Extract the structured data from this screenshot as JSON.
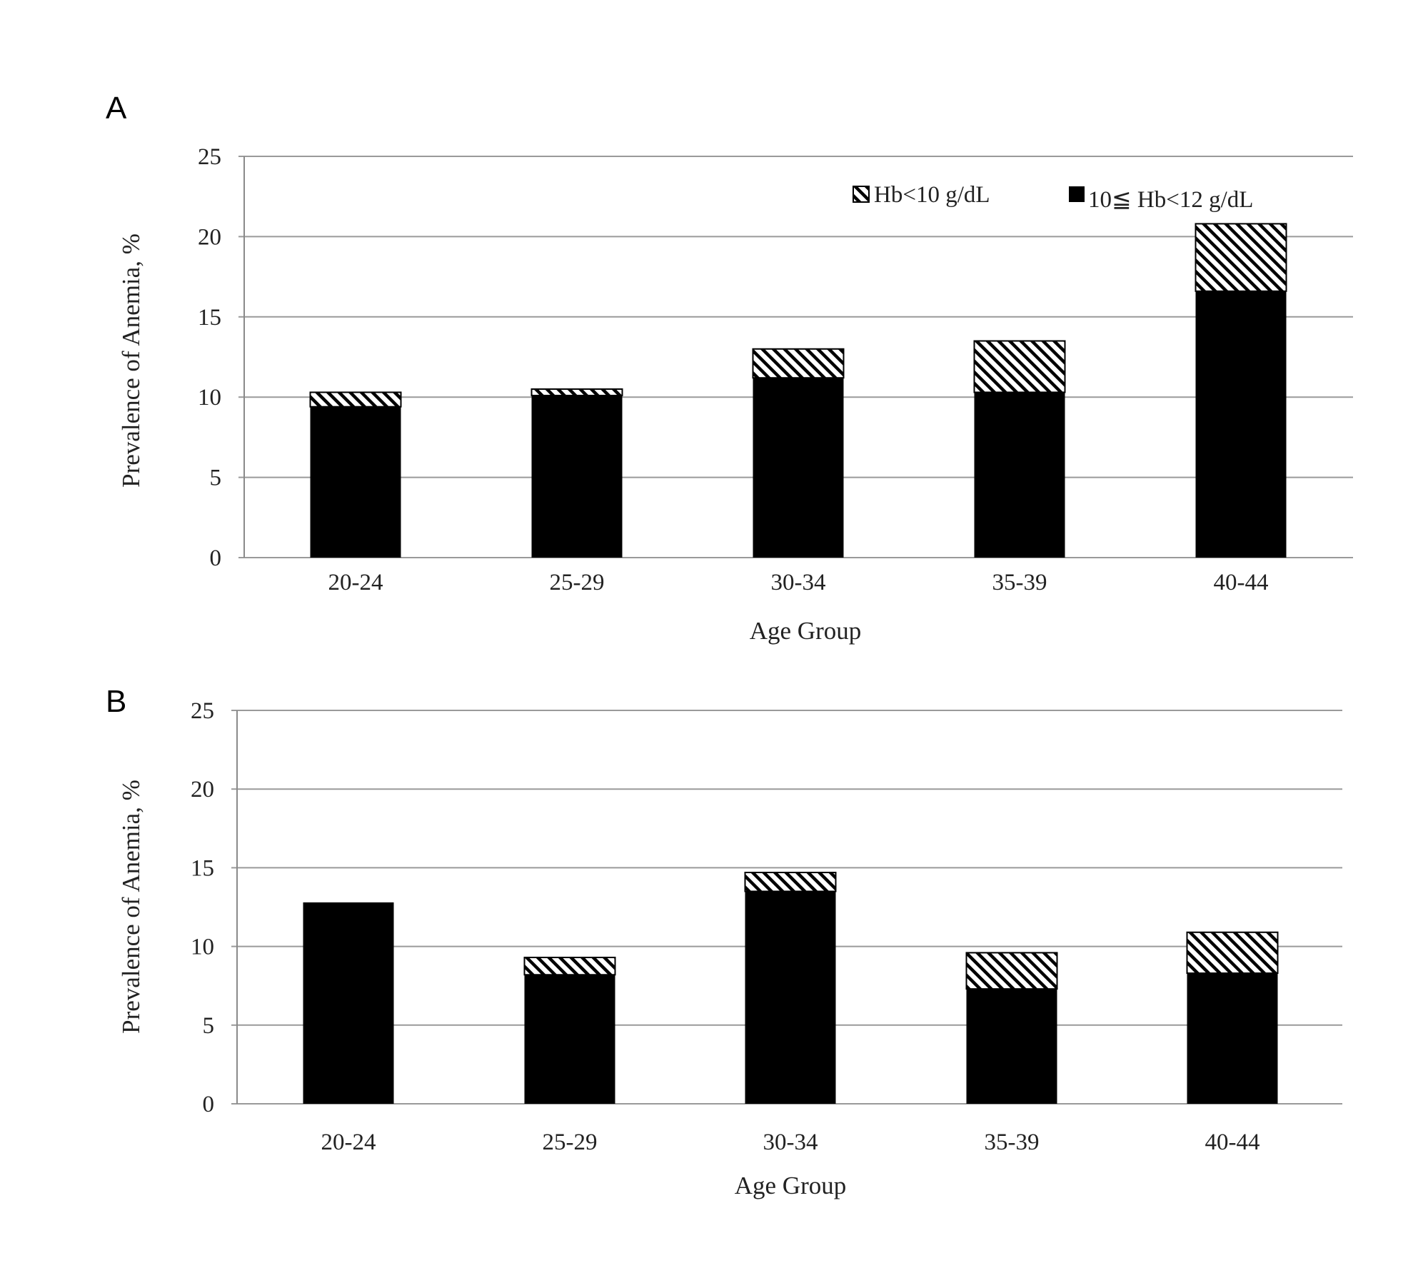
{
  "chart_data": [
    {
      "type": "bar",
      "stacked": true,
      "panel_label": "A",
      "categories": [
        "20-24",
        "25-29",
        "30-34",
        "35-39",
        "40-44"
      ],
      "series": [
        {
          "name": "10≦ Hb<12 g/dL",
          "values": [
            9.4,
            10.1,
            11.2,
            10.3,
            16.6
          ],
          "color": "#000000",
          "pattern": "solid"
        },
        {
          "name": "Hb<10 g/dL",
          "values": [
            0.9,
            0.4,
            1.8,
            3.2,
            4.2
          ],
          "color": "#000000",
          "pattern": "hatched"
        }
      ],
      "xlabel": "Age Group",
      "ylabel": "Prevalence  of Anemia,  %",
      "ylim": [
        0,
        25
      ],
      "yticks": [
        "0",
        "5",
        "10",
        "15",
        "20",
        "25"
      ],
      "grid": true,
      "legend": "top-right"
    },
    {
      "type": "bar",
      "stacked": true,
      "panel_label": "B",
      "categories": [
        "20-24",
        "25-29",
        "30-34",
        "35-39",
        "40-44"
      ],
      "series": [
        {
          "name": "10≦ Hb<12 g/dL",
          "values": [
            12.8,
            8.2,
            13.5,
            7.3,
            8.3
          ],
          "color": "#000000",
          "pattern": "solid"
        },
        {
          "name": "Hb<10 g/dL",
          "values": [
            0.0,
            1.1,
            1.2,
            2.3,
            2.6
          ],
          "color": "#000000",
          "pattern": "hatched"
        }
      ],
      "xlabel": "Age Group",
      "ylabel": "Prevalence  of Anemia,  %",
      "ylim": [
        0,
        25
      ],
      "yticks": [
        "0",
        "5",
        "10",
        "15",
        "20",
        "25"
      ],
      "grid": true
    }
  ]
}
